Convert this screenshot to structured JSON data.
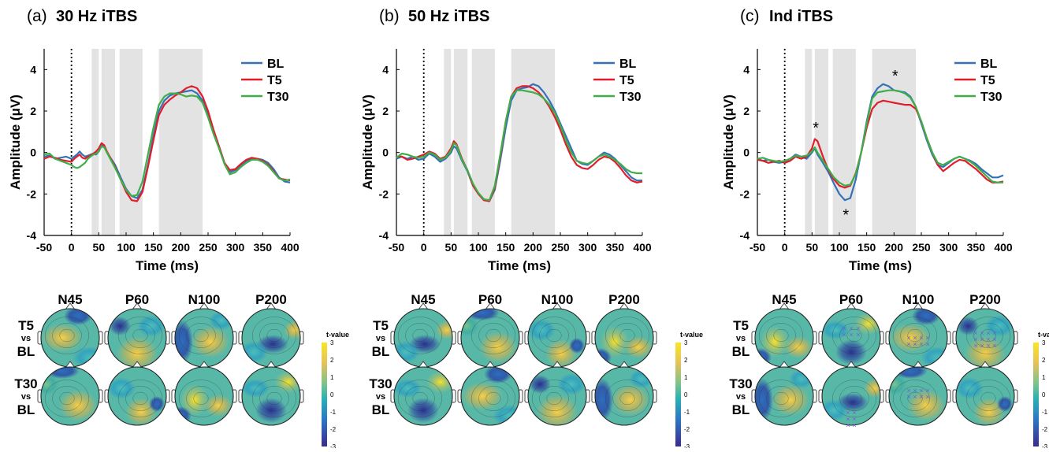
{
  "figure": {
    "colors": {
      "BL": "#3372b8",
      "T5": "#e01e2b",
      "T30": "#3fae49",
      "shade": "#e3e3e3"
    },
    "colorbar_label": "t-value",
    "colorbar_ticks": [
      "3",
      "2",
      "1",
      "0",
      "-1",
      "-2",
      "-3"
    ],
    "topo_columns": [
      "N45",
      "P60",
      "N100",
      "P200"
    ],
    "topo_rows": [
      {
        "top": "T5",
        "mid": "vs",
        "bot": "BL"
      },
      {
        "top": "T30",
        "mid": "vs",
        "bot": "BL"
      }
    ]
  },
  "chart_data": [
    {
      "type": "line",
      "panel_label": "(a)",
      "title": "30 Hz iTBS",
      "xlabel": "Time (ms)",
      "ylabel": "Amplitude (μV)",
      "xlim": [
        -50,
        400
      ],
      "ylim": [
        -4,
        5
      ],
      "xticks": [
        -50,
        0,
        50,
        100,
        150,
        200,
        250,
        300,
        350,
        400
      ],
      "yticks": [
        -4,
        -2,
        0,
        2,
        4
      ],
      "stim_onset_ms": 0,
      "shaded_windows_ms": [
        [
          37,
          50
        ],
        [
          55,
          80
        ],
        [
          88,
          130
        ],
        [
          160,
          240
        ]
      ],
      "legend": [
        "BL",
        "T5",
        "T30"
      ],
      "legend_position": "top-right",
      "annotations": [],
      "series": [
        {
          "name": "BL",
          "x": [
            -50,
            -40,
            -30,
            -20,
            -10,
            0,
            5,
            10,
            15,
            20,
            25,
            30,
            35,
            40,
            45,
            50,
            55,
            60,
            65,
            70,
            80,
            90,
            100,
            110,
            120,
            130,
            140,
            150,
            160,
            170,
            180,
            190,
            200,
            210,
            220,
            230,
            240,
            250,
            260,
            270,
            280,
            290,
            300,
            310,
            320,
            330,
            340,
            350,
            360,
            370,
            380,
            390,
            400
          ],
          "y": [
            -0.2,
            -0.15,
            -0.3,
            -0.25,
            -0.2,
            -0.3,
            -0.2,
            -0.1,
            0.05,
            -0.1,
            -0.2,
            -0.15,
            -0.1,
            -0.05,
            -0.1,
            0.05,
            0.35,
            0.3,
            0.0,
            -0.2,
            -0.6,
            -1.2,
            -1.75,
            -2.1,
            -2.2,
            -1.8,
            -0.6,
            0.8,
            2.0,
            2.5,
            2.75,
            2.85,
            2.9,
            2.95,
            3.0,
            2.85,
            2.5,
            1.8,
            1.0,
            0.3,
            -0.5,
            -0.95,
            -0.85,
            -0.6,
            -0.4,
            -0.3,
            -0.3,
            -0.35,
            -0.5,
            -0.8,
            -1.2,
            -1.4,
            -1.45
          ]
        },
        {
          "name": "T5",
          "x": [
            -50,
            -40,
            -30,
            -20,
            -10,
            0,
            5,
            10,
            15,
            20,
            25,
            30,
            35,
            40,
            45,
            50,
            55,
            60,
            65,
            70,
            80,
            90,
            100,
            110,
            120,
            130,
            140,
            150,
            160,
            170,
            180,
            190,
            200,
            210,
            220,
            230,
            240,
            250,
            260,
            270,
            280,
            290,
            300,
            310,
            320,
            330,
            340,
            350,
            360,
            370,
            380,
            390,
            400
          ],
          "y": [
            -0.3,
            -0.2,
            -0.25,
            -0.35,
            -0.4,
            -0.45,
            -0.3,
            -0.2,
            -0.1,
            -0.25,
            -0.3,
            -0.2,
            -0.15,
            -0.05,
            0.05,
            0.2,
            0.45,
            0.35,
            0.05,
            -0.2,
            -0.7,
            -1.3,
            -1.9,
            -2.3,
            -2.35,
            -1.9,
            -0.7,
            0.6,
            1.8,
            2.3,
            2.55,
            2.75,
            2.9,
            3.1,
            3.2,
            3.1,
            2.7,
            2.0,
            1.1,
            0.3,
            -0.5,
            -0.85,
            -0.8,
            -0.55,
            -0.35,
            -0.25,
            -0.3,
            -0.4,
            -0.6,
            -0.9,
            -1.25,
            -1.3,
            -1.35
          ]
        },
        {
          "name": "T30",
          "x": [
            -50,
            -40,
            -30,
            -20,
            -10,
            0,
            5,
            10,
            15,
            20,
            25,
            30,
            35,
            40,
            45,
            50,
            55,
            60,
            65,
            70,
            80,
            90,
            100,
            110,
            120,
            130,
            140,
            150,
            160,
            170,
            180,
            190,
            200,
            210,
            220,
            230,
            240,
            250,
            260,
            270,
            280,
            290,
            300,
            310,
            320,
            330,
            340,
            350,
            360,
            370,
            380,
            390,
            400
          ],
          "y": [
            -0.1,
            -0.05,
            -0.3,
            -0.4,
            -0.5,
            -0.6,
            -0.7,
            -0.75,
            -0.7,
            -0.6,
            -0.5,
            -0.3,
            -0.2,
            -0.1,
            -0.05,
            0.05,
            0.3,
            0.25,
            0.0,
            -0.25,
            -0.75,
            -1.3,
            -1.8,
            -2.1,
            -2.05,
            -1.4,
            -0.1,
            1.2,
            2.3,
            2.7,
            2.85,
            2.85,
            2.8,
            2.7,
            2.75,
            2.7,
            2.4,
            1.7,
            0.9,
            0.2,
            -0.55,
            -1.05,
            -0.95,
            -0.7,
            -0.5,
            -0.35,
            -0.35,
            -0.45,
            -0.65,
            -0.95,
            -1.25,
            -1.35,
            -1.3
          ]
        }
      ]
    },
    {
      "type": "line",
      "panel_label": "(b)",
      "title": "50 Hz iTBS",
      "xlabel": "Time (ms)",
      "ylabel": "Amplitude (μV)",
      "xlim": [
        -50,
        400
      ],
      "ylim": [
        -4,
        5
      ],
      "xticks": [
        -50,
        0,
        50,
        100,
        150,
        200,
        250,
        300,
        350,
        400
      ],
      "yticks": [
        -4,
        -2,
        0,
        2,
        4
      ],
      "stim_onset_ms": 0,
      "shaded_windows_ms": [
        [
          37,
          50
        ],
        [
          55,
          80
        ],
        [
          88,
          130
        ],
        [
          160,
          240
        ]
      ],
      "legend": [
        "BL",
        "T5",
        "T30"
      ],
      "legend_position": "top-right",
      "annotations": [],
      "series": [
        {
          "name": "BL",
          "x": [
            -50,
            -40,
            -30,
            -20,
            -10,
            0,
            10,
            20,
            30,
            40,
            50,
            55,
            60,
            70,
            80,
            90,
            100,
            110,
            120,
            130,
            140,
            150,
            160,
            170,
            180,
            190,
            200,
            210,
            220,
            230,
            240,
            250,
            260,
            270,
            280,
            290,
            300,
            310,
            320,
            330,
            340,
            350,
            360,
            370,
            380,
            390,
            400
          ],
          "y": [
            -0.3,
            -0.2,
            -0.3,
            -0.2,
            -0.35,
            -0.3,
            -0.05,
            -0.2,
            -0.45,
            -0.3,
            0.0,
            0.3,
            0.2,
            -0.4,
            -0.9,
            -1.6,
            -2.0,
            -2.3,
            -2.35,
            -1.8,
            -0.4,
            1.2,
            2.5,
            3.0,
            3.1,
            3.15,
            3.3,
            3.2,
            2.9,
            2.5,
            2.0,
            1.4,
            0.8,
            0.2,
            -0.4,
            -0.55,
            -0.6,
            -0.4,
            -0.2,
            0.0,
            -0.1,
            -0.3,
            -0.6,
            -0.9,
            -1.2,
            -1.35,
            -1.35
          ]
        },
        {
          "name": "T5",
          "x": [
            -50,
            -40,
            -30,
            -20,
            -10,
            0,
            10,
            20,
            30,
            40,
            50,
            55,
            60,
            70,
            80,
            90,
            100,
            110,
            120,
            130,
            140,
            150,
            160,
            170,
            180,
            190,
            200,
            210,
            220,
            230,
            240,
            250,
            260,
            270,
            280,
            290,
            300,
            310,
            320,
            330,
            340,
            350,
            360,
            370,
            380,
            390,
            400
          ],
          "y": [
            -0.2,
            -0.2,
            -0.35,
            -0.3,
            -0.2,
            -0.1,
            0.05,
            -0.05,
            -0.3,
            -0.2,
            0.2,
            0.55,
            0.4,
            -0.3,
            -0.85,
            -1.6,
            -2.0,
            -2.3,
            -2.35,
            -1.7,
            -0.2,
            1.5,
            2.7,
            3.1,
            3.2,
            3.2,
            3.1,
            2.9,
            2.6,
            2.2,
            1.7,
            1.1,
            0.4,
            -0.2,
            -0.6,
            -0.75,
            -0.8,
            -0.6,
            -0.35,
            -0.2,
            -0.25,
            -0.45,
            -0.75,
            -1.1,
            -1.35,
            -1.45,
            -1.4
          ]
        },
        {
          "name": "T30",
          "x": [
            -50,
            -40,
            -30,
            -20,
            -10,
            0,
            10,
            20,
            30,
            40,
            50,
            55,
            60,
            70,
            80,
            90,
            100,
            110,
            120,
            130,
            140,
            150,
            160,
            170,
            180,
            190,
            200,
            210,
            220,
            230,
            240,
            250,
            260,
            270,
            280,
            290,
            300,
            310,
            320,
            330,
            340,
            350,
            360,
            370,
            380,
            390,
            400
          ],
          "y": [
            -0.25,
            -0.05,
            -0.1,
            -0.2,
            -0.25,
            -0.2,
            0.0,
            -0.1,
            -0.35,
            -0.25,
            0.1,
            0.45,
            0.35,
            -0.35,
            -0.85,
            -1.5,
            -1.95,
            -2.25,
            -2.3,
            -1.6,
            -0.1,
            1.5,
            2.7,
            3.0,
            3.0,
            2.95,
            2.9,
            2.8,
            2.6,
            2.3,
            1.9,
            1.3,
            0.6,
            0.0,
            -0.4,
            -0.5,
            -0.55,
            -0.4,
            -0.2,
            -0.1,
            -0.2,
            -0.35,
            -0.55,
            -0.8,
            -0.95,
            -1.0,
            -1.0
          ]
        }
      ]
    },
    {
      "type": "line",
      "panel_label": "(c)",
      "title": "Ind iTBS",
      "xlabel": "Time (ms)",
      "ylabel": "Amplitude (μV)",
      "xlim": [
        -50,
        400
      ],
      "ylim": [
        -4,
        5
      ],
      "xticks": [
        -50,
        0,
        50,
        100,
        150,
        200,
        250,
        300,
        350,
        400
      ],
      "yticks": [
        -4,
        -2,
        0,
        2,
        4
      ],
      "stim_onset_ms": 0,
      "shaded_windows_ms": [
        [
          37,
          50
        ],
        [
          55,
          80
        ],
        [
          88,
          130
        ],
        [
          160,
          240
        ]
      ],
      "legend": [
        "BL",
        "T5",
        "T30"
      ],
      "legend_position": "top-right",
      "annotations": [
        {
          "text": "*",
          "x": 57,
          "y": 1.25
        },
        {
          "text": "*",
          "x": 112,
          "y": -2.95
        },
        {
          "text": "*",
          "x": 202,
          "y": 3.75
        }
      ],
      "series": [
        {
          "name": "BL",
          "x": [
            -50,
            -40,
            -30,
            -20,
            -10,
            0,
            10,
            20,
            30,
            40,
            50,
            55,
            60,
            70,
            80,
            90,
            100,
            110,
            120,
            130,
            140,
            150,
            160,
            170,
            180,
            190,
            200,
            210,
            220,
            230,
            240,
            250,
            260,
            270,
            280,
            290,
            300,
            310,
            320,
            330,
            340,
            350,
            360,
            370,
            380,
            390,
            400
          ],
          "y": [
            -0.3,
            -0.4,
            -0.35,
            -0.45,
            -0.5,
            -0.45,
            -0.3,
            -0.1,
            -0.2,
            -0.3,
            0.0,
            0.2,
            -0.1,
            -0.5,
            -0.95,
            -1.5,
            -2.0,
            -2.3,
            -2.2,
            -1.3,
            0.0,
            1.5,
            2.7,
            3.1,
            3.3,
            3.2,
            3.0,
            2.95,
            2.9,
            2.7,
            2.2,
            1.4,
            0.6,
            -0.1,
            -0.6,
            -0.7,
            -0.5,
            -0.3,
            -0.2,
            -0.3,
            -0.4,
            -0.55,
            -0.8,
            -1.0,
            -1.2,
            -1.2,
            -1.1
          ]
        },
        {
          "name": "T5",
          "x": [
            -50,
            -40,
            -30,
            -20,
            -10,
            0,
            10,
            20,
            30,
            40,
            50,
            55,
            60,
            70,
            80,
            90,
            100,
            110,
            120,
            130,
            140,
            150,
            160,
            170,
            180,
            190,
            200,
            210,
            220,
            230,
            240,
            250,
            260,
            270,
            280,
            290,
            300,
            310,
            320,
            330,
            340,
            350,
            360,
            370,
            380,
            390,
            400
          ],
          "y": [
            -0.35,
            -0.4,
            -0.5,
            -0.45,
            -0.4,
            -0.5,
            -0.4,
            -0.2,
            -0.3,
            -0.2,
            0.2,
            0.65,
            0.55,
            -0.2,
            -0.85,
            -1.3,
            -1.6,
            -1.7,
            -1.6,
            -1.0,
            0.0,
            1.2,
            2.1,
            2.4,
            2.5,
            2.45,
            2.4,
            2.35,
            2.3,
            2.3,
            2.1,
            1.5,
            0.7,
            0.0,
            -0.6,
            -0.9,
            -0.7,
            -0.5,
            -0.35,
            -0.4,
            -0.6,
            -0.8,
            -1.05,
            -1.3,
            -1.45,
            -1.45,
            -1.4
          ]
        },
        {
          "name": "T30",
          "x": [
            -50,
            -40,
            -30,
            -20,
            -10,
            0,
            10,
            20,
            30,
            40,
            50,
            55,
            60,
            70,
            80,
            90,
            100,
            110,
            120,
            130,
            140,
            150,
            160,
            170,
            180,
            190,
            200,
            210,
            220,
            230,
            240,
            250,
            260,
            270,
            280,
            290,
            300,
            310,
            320,
            330,
            340,
            350,
            360,
            370,
            380,
            390,
            400
          ],
          "y": [
            -0.3,
            -0.25,
            -0.35,
            -0.4,
            -0.45,
            -0.4,
            -0.3,
            -0.15,
            -0.2,
            -0.15,
            0.05,
            0.25,
            0.0,
            -0.4,
            -0.8,
            -1.2,
            -1.45,
            -1.6,
            -1.55,
            -1.05,
            0.0,
            1.4,
            2.6,
            2.9,
            2.95,
            3.0,
            3.0,
            2.95,
            2.85,
            2.65,
            2.2,
            1.5,
            0.7,
            0.0,
            -0.5,
            -0.6,
            -0.45,
            -0.3,
            -0.2,
            -0.3,
            -0.45,
            -0.65,
            -0.9,
            -1.15,
            -1.4,
            -1.45,
            -1.45
          ]
        }
      ]
    }
  ]
}
